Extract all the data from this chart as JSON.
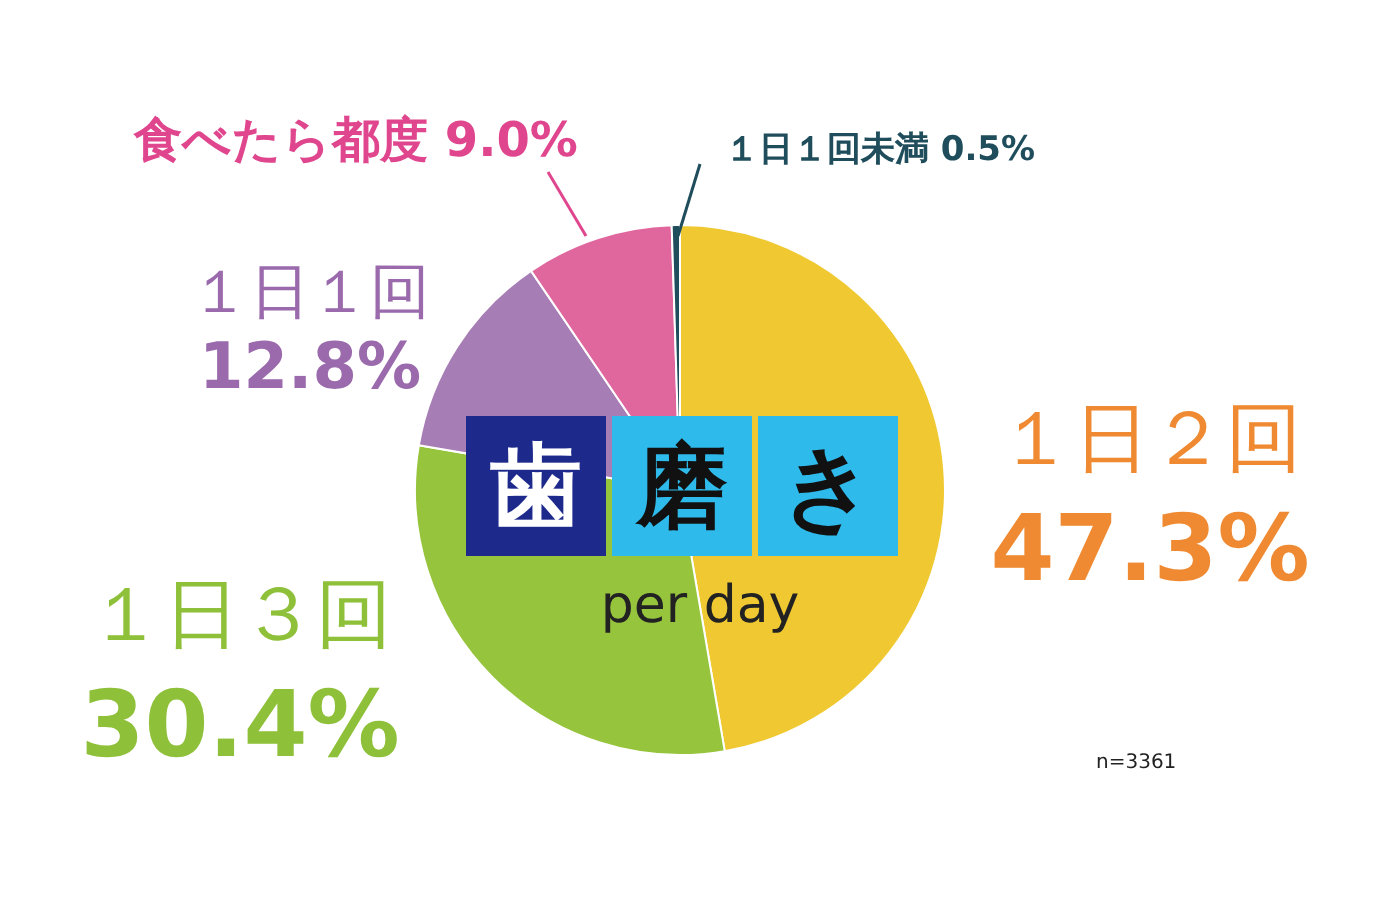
{
  "chart_data": {
    "type": "pie",
    "title": "歯磨き",
    "subtitle": "per day",
    "categories": [
      "１日２回",
      "１日３回",
      "１日１回",
      "食べたら都度",
      "１日１回未満"
    ],
    "values": [
      47.3,
      30.4,
      12.8,
      9.0,
      0.5
    ],
    "colors": [
      "#f0c932",
      "#97c43d",
      "#a77db5",
      "#e0669e",
      "#1f4d5c"
    ],
    "value_labels": [
      "47.3%",
      "30.4%",
      "12.8%",
      "9.0%",
      "0.5%"
    ],
    "annotations": [
      "n=3361"
    ],
    "legend": false
  }
}
